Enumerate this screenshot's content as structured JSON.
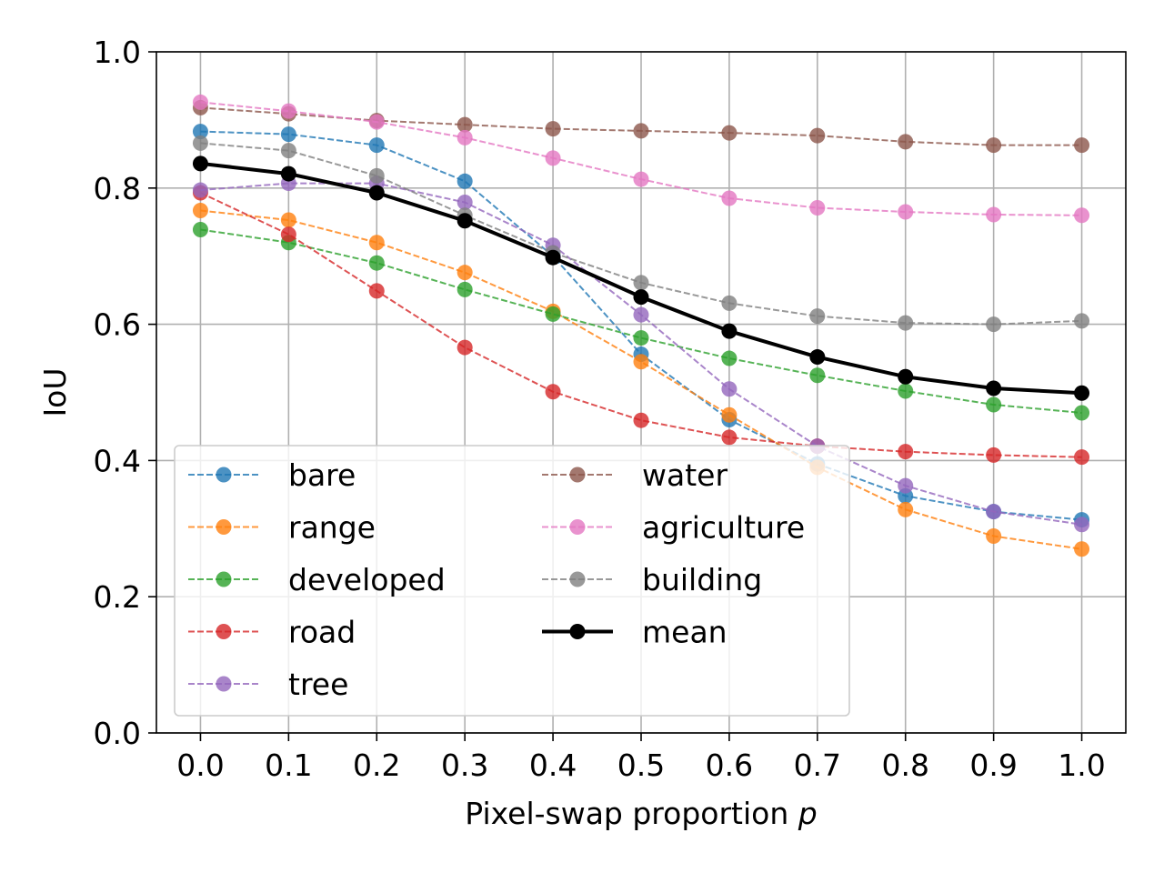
{
  "chart_data": {
    "type": "line",
    "xlabel": "Pixel-swap proportion ",
    "xlabel_var": "p",
    "ylabel": "IoU",
    "xlim": [
      -0.05,
      1.05
    ],
    "ylim": [
      0.0,
      1.0
    ],
    "x": [
      0.0,
      0.1,
      0.2,
      0.3,
      0.4,
      0.5,
      0.6,
      0.7,
      0.8,
      0.9,
      1.0
    ],
    "x_tick_labels": [
      "0.0",
      "0.1",
      "0.2",
      "0.3",
      "0.4",
      "0.5",
      "0.6",
      "0.7",
      "0.8",
      "0.9",
      "1.0"
    ],
    "y_ticks": [
      0.0,
      0.2,
      0.4,
      0.6,
      0.8,
      1.0
    ],
    "y_tick_labels": [
      "0.0",
      "0.2",
      "0.4",
      "0.6",
      "0.8",
      "1.0"
    ],
    "grid": true,
    "legend_position": "lower-left",
    "legend_columns": 2,
    "series": [
      {
        "name": "bare",
        "color": "#1f77b4",
        "style": "dashed",
        "values": [
          0.883,
          0.879,
          0.863,
          0.81,
          0.7,
          0.556,
          0.46,
          0.395,
          0.348,
          0.325,
          0.313
        ]
      },
      {
        "name": "range",
        "color": "#ff7f0e",
        "style": "dashed",
        "values": [
          0.767,
          0.753,
          0.72,
          0.676,
          0.619,
          0.545,
          0.467,
          0.39,
          0.328,
          0.289,
          0.27
        ]
      },
      {
        "name": "developed",
        "color": "#2ca02c",
        "style": "dashed",
        "values": [
          0.739,
          0.72,
          0.69,
          0.651,
          0.615,
          0.58,
          0.55,
          0.525,
          0.502,
          0.482,
          0.47
        ]
      },
      {
        "name": "road",
        "color": "#d62728",
        "style": "dashed",
        "values": [
          0.793,
          0.732,
          0.649,
          0.566,
          0.501,
          0.459,
          0.434,
          0.421,
          0.413,
          0.408,
          0.405
        ]
      },
      {
        "name": "tree",
        "color": "#9467bd",
        "style": "dashed",
        "values": [
          0.797,
          0.807,
          0.807,
          0.779,
          0.716,
          0.614,
          0.505,
          0.421,
          0.363,
          0.325,
          0.306
        ]
      },
      {
        "name": "water",
        "color": "#8c564b",
        "style": "dashed",
        "values": [
          0.918,
          0.909,
          0.899,
          0.893,
          0.887,
          0.884,
          0.881,
          0.877,
          0.868,
          0.863,
          0.863
        ]
      },
      {
        "name": "agriculture",
        "color": "#e377c2",
        "style": "dashed",
        "values": [
          0.926,
          0.913,
          0.897,
          0.874,
          0.844,
          0.813,
          0.785,
          0.771,
          0.765,
          0.761,
          0.76
        ]
      },
      {
        "name": "building",
        "color": "#7f7f7f",
        "style": "dashed",
        "values": [
          0.866,
          0.855,
          0.818,
          0.76,
          0.705,
          0.661,
          0.631,
          0.612,
          0.602,
          0.6,
          0.605
        ]
      },
      {
        "name": "mean",
        "color": "#000000",
        "style": "solid",
        "values": [
          0.836,
          0.821,
          0.793,
          0.752,
          0.698,
          0.64,
          0.59,
          0.552,
          0.523,
          0.506,
          0.499
        ]
      }
    ]
  }
}
